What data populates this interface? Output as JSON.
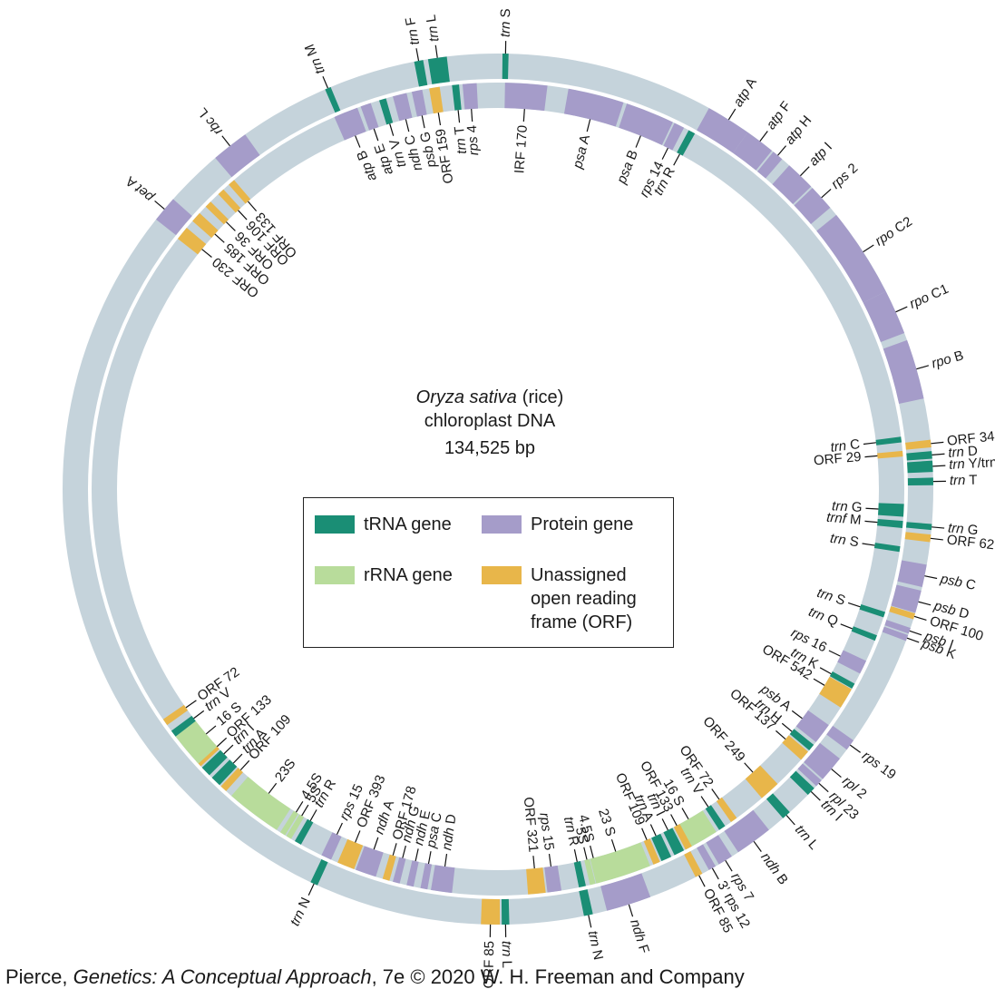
{
  "title": {
    "species": "Oryza sativa",
    "common": "(rice)",
    "line2": "chloroplast DNA",
    "line3": "134,525 bp"
  },
  "legend": {
    "trna": "tRNA gene",
    "protein": "Protein gene",
    "rrna": "rRNA gene",
    "orf_line1": "Unassigned",
    "orf_line2": "open reading",
    "orf_line3": "frame (ORF)"
  },
  "colors": {
    "trna": "#1a8e75",
    "protein": "#a59cc9",
    "rrna": "#b8dc9b",
    "orf": "#e8b64a",
    "ring": "#c5d3db",
    "leader": "#111111"
  },
  "credit": {
    "author": "Pierce, ",
    "book": "Genetics: A Conceptual Approach",
    "rest": ", 7e © 2020 W. H. Freeman and Company"
  },
  "genes": [
    {
      "label": "trn S",
      "t": "trna",
      "r": "o",
      "a": 1,
      "w": 0.8
    },
    {
      "label": "trn L",
      "t": "trna",
      "r": "o",
      "a": -8,
      "w": 2.5
    },
    {
      "label": "trn F",
      "t": "trna",
      "r": "o",
      "a": -10.5,
      "w": 1.2
    },
    {
      "label": "trn M",
      "t": "trna",
      "r": "o",
      "a": -23,
      "w": 0.8
    },
    {
      "label": "rbc L",
      "t": "protein",
      "r": "o",
      "a": -38,
      "w": 5
    },
    {
      "label": "ORF 133",
      "t": "orf",
      "r": "i",
      "a": -41,
      "w": 1
    },
    {
      "label": "ORF 106",
      "t": "orf",
      "r": "i",
      "a": -43,
      "w": 1
    },
    {
      "label": "ORF 36",
      "t": "orf",
      "r": "i",
      "a": -45.5,
      "w": 1
    },
    {
      "label": "ORF 185",
      "t": "orf",
      "r": "i",
      "a": -48,
      "w": 1.5
    },
    {
      "label": "pet A",
      "t": "protein",
      "r": "o",
      "a": -50,
      "w": 3.5
    },
    {
      "label": "ORF 230",
      "t": "orf",
      "r": "i",
      "a": -51,
      "w": 2
    },
    {
      "label": "atp B",
      "t": "protein",
      "r": "i",
      "a": -22,
      "w": 3.5
    },
    {
      "label": "atp E",
      "t": "protein",
      "r": "i",
      "a": -19,
      "w": 1.5
    },
    {
      "label": "trn V",
      "t": "trna",
      "r": "i",
      "a": -16.5,
      "w": 1
    },
    {
      "label": "ndh C",
      "t": "protein",
      "r": "i",
      "a": -14,
      "w": 2
    },
    {
      "label": "psb G",
      "t": "protein",
      "r": "i",
      "a": -11.5,
      "w": 1.5
    },
    {
      "label": "ORF 159",
      "t": "orf",
      "r": "i",
      "a": -9,
      "w": 1.5
    },
    {
      "label": "rps 4",
      "t": "protein",
      "r": "i",
      "a": -4,
      "w": 2
    },
    {
      "label": "trn T",
      "t": "trna",
      "r": "i",
      "a": -6,
      "w": 1
    },
    {
      "label": "IRF 170",
      "t": "protein",
      "r": "i",
      "a": 4,
      "w": 6
    },
    {
      "label": "psa A",
      "t": "protein",
      "r": "i",
      "a": 14,
      "w": 8
    },
    {
      "label": "psa B",
      "t": "protein",
      "r": "i",
      "a": 22,
      "w": 7
    },
    {
      "label": "rps 14",
      "t": "protein",
      "r": "i",
      "a": 26.5,
      "w": 1.5
    },
    {
      "label": "trn R",
      "t": "trna",
      "r": "i",
      "a": 28.5,
      "w": 1
    },
    {
      "label": "atp A",
      "t": "protein",
      "r": "o",
      "a": 32,
      "w": 6
    },
    {
      "label": "atp F",
      "t": "protein",
      "r": "o",
      "a": 37,
      "w": 4
    },
    {
      "label": "atp H",
      "t": "protein",
      "r": "o",
      "a": 40,
      "w": 1.5
    },
    {
      "label": "atp I",
      "t": "protein",
      "r": "o",
      "a": 44,
      "w": 4
    },
    {
      "label": "rps 2",
      "t": "protein",
      "r": "o",
      "a": 48,
      "w": 3.5
    },
    {
      "label": "rpo C2",
      "t": "protein",
      "r": "o",
      "a": 57,
      "w": 12
    },
    {
      "label": "rpo C1",
      "t": "protein",
      "r": "o",
      "a": 66,
      "w": 6
    },
    {
      "label": "rpo B",
      "t": "protein",
      "r": "o",
      "a": 74,
      "w": 8
    },
    {
      "label": "ORF 34",
      "t": "orf",
      "r": "o",
      "a": 84,
      "w": 1
    },
    {
      "label": "trn D",
      "t": "trna",
      "r": "o",
      "a": 85.5,
      "w": 1
    },
    {
      "label": "trn Y/trn E",
      "t": "trna",
      "r": "o",
      "a": 87,
      "w": 1.5
    },
    {
      "label": "trn T",
      "t": "trna",
      "r": "o",
      "a": 89,
      "w": 1
    },
    {
      "label": "trn C",
      "t": "trna",
      "r": "i",
      "a": 83,
      "w": 0.8
    },
    {
      "label": "ORF 29",
      "t": "orf",
      "r": "i",
      "a": 85,
      "w": 0.8
    },
    {
      "label": "trn G",
      "t": "trna",
      "r": "i",
      "a": 93,
      "w": 1.8
    },
    {
      "label": "trnf M",
      "t": "trna",
      "r": "i",
      "a": 95,
      "w": 1
    },
    {
      "label": "trn G",
      "t": "trna",
      "r": "o",
      "a": 95,
      "w": 0.8
    },
    {
      "label": "ORF 62",
      "t": "orf",
      "r": "o",
      "a": 96.5,
      "w": 1
    },
    {
      "label": "trn S",
      "t": "trna",
      "r": "i",
      "a": 98.5,
      "w": 0.8
    },
    {
      "label": "psb C",
      "t": "protein",
      "r": "o",
      "a": 101.5,
      "w": 3
    },
    {
      "label": "psb D",
      "t": "protein",
      "r": "o",
      "a": 105,
      "w": 3
    },
    {
      "label": "ORF 100",
      "t": "orf",
      "r": "o",
      "a": 107,
      "w": 0.8
    },
    {
      "label": "trn S",
      "t": "trna",
      "r": "i",
      "a": 108,
      "w": 0.8
    },
    {
      "label": "psb I",
      "t": "protein",
      "r": "o",
      "a": 109,
      "w": 0.8
    },
    {
      "label": "psb K",
      "t": "protein",
      "r": "o",
      "a": 110,
      "w": 0.8
    },
    {
      "label": "trn Q",
      "t": "trna",
      "r": "i",
      "a": 111.5,
      "w": 0.8
    },
    {
      "label": "rps 16",
      "t": "protein",
      "r": "i",
      "a": 116,
      "w": 2
    },
    {
      "label": "trn K",
      "t": "trna",
      "r": "i",
      "a": 119,
      "w": 0.8
    },
    {
      "label": "ORF 542",
      "t": "orf",
      "r": "i",
      "a": 121,
      "w": 3
    },
    {
      "label": "psb A",
      "t": "protein",
      "r": "i",
      "a": 127,
      "w": 3
    },
    {
      "label": "trn H",
      "t": "trna",
      "r": "i",
      "a": 129.5,
      "w": 1
    },
    {
      "label": "ORF 137",
      "t": "orf",
      "r": "i",
      "a": 131,
      "w": 1.5
    },
    {
      "label": "ORF 249",
      "t": "orf",
      "r": "i",
      "a": 138,
      "w": 3
    },
    {
      "label": "rps 19",
      "t": "protein",
      "r": "o",
      "a": 126,
      "w": 1.5
    },
    {
      "label": "rpl 2",
      "t": "protein",
      "r": "o",
      "a": 130,
      "w": 3.5
    },
    {
      "label": "rpl 23",
      "t": "protein",
      "r": "o",
      "a": 132.5,
      "w": 1
    },
    {
      "label": "trn I",
      "t": "trna",
      "r": "o",
      "a": 134,
      "w": 1.2
    },
    {
      "label": "trn L",
      "t": "trna",
      "r": "o",
      "a": 138.5,
      "w": 1.2
    },
    {
      "label": "ndh B",
      "t": "protein",
      "r": "o",
      "a": 144,
      "w": 5
    },
    {
      "label": "rps 7",
      "t": "protein",
      "r": "o",
      "a": 148.5,
      "w": 2
    },
    {
      "label": "3’ rps 12",
      "t": "protein",
      "r": "o",
      "a": 150.5,
      "w": 1
    },
    {
      "label": "ORF 85",
      "t": "orf",
      "r": "o",
      "a": 152.5,
      "w": 1
    },
    {
      "label": "ORF 72",
      "t": "orf",
      "r": "i",
      "a": 144.5,
      "w": 1
    },
    {
      "label": "trn V",
      "t": "trna",
      "r": "i",
      "a": 146.5,
      "w": 1
    },
    {
      "label": "16 S",
      "t": "rrna",
      "r": "i",
      "a": 150,
      "w": 5
    },
    {
      "label": "ORF 133",
      "t": "orf",
      "r": "i",
      "a": 152,
      "w": 1
    },
    {
      "label": "trn I",
      "t": "trna",
      "r": "i",
      "a": 153.5,
      "w": 1.5
    },
    {
      "label": "trn A",
      "t": "trna",
      "r": "i",
      "a": 155.5,
      "w": 1.5
    },
    {
      "label": "ORF 109",
      "t": "orf",
      "r": "i",
      "a": 157,
      "w": 1
    },
    {
      "label": "23 S",
      "t": "rrna",
      "r": "i",
      "a": 162,
      "w": 8
    },
    {
      "label": "4.5S",
      "t": "rrna",
      "r": "i",
      "a": 165.5,
      "w": 0.8
    },
    {
      "label": "5S",
      "t": "rrna",
      "r": "i",
      "a": 166.5,
      "w": 0.8
    },
    {
      "label": "trn R",
      "t": "trna",
      "r": "i",
      "a": 168,
      "w": 1
    },
    {
      "label": "rps 15",
      "t": "protein",
      "r": "i",
      "a": 172,
      "w": 2
    },
    {
      "label": "ORF 321",
      "t": "orf",
      "r": "i",
      "a": 174.5,
      "w": 2.5
    },
    {
      "label": "ndh D",
      "t": "protein",
      "r": "i",
      "a": 188,
      "w": 3
    },
    {
      "label": "psa C",
      "t": "protein",
      "r": "i",
      "a": 190.5,
      "w": 1
    },
    {
      "label": "ndh E",
      "t": "protein",
      "r": "i",
      "a": 192.5,
      "w": 1
    },
    {
      "label": "ndh G",
      "t": "protein",
      "r": "i",
      "a": 194.5,
      "w": 1
    },
    {
      "label": "ORF 178",
      "t": "orf",
      "r": "i",
      "a": 196,
      "w": 1
    },
    {
      "label": "ORF 393",
      "t": "orf",
      "r": "i",
      "a": 202,
      "w": 2.5
    },
    {
      "label": "ndh A",
      "t": "protein",
      "r": "i",
      "a": 199,
      "w": 3
    },
    {
      "label": "rps 15",
      "t": "protein",
      "r": "i",
      "a": 205,
      "w": 1.5
    },
    {
      "label": "trn R",
      "t": "trna",
      "r": "i",
      "a": 209.5,
      "w": 1
    },
    {
      "label": "5S",
      "t": "rrna",
      "r": "i",
      "a": 211,
      "w": 0.8
    },
    {
      "label": "4.5S",
      "t": "rrna",
      "r": "i",
      "a": 212,
      "w": 0.8
    },
    {
      "label": "23S",
      "t": "rrna",
      "r": "i",
      "a": 217,
      "w": 8
    },
    {
      "label": "ORF 109",
      "t": "orf",
      "r": "i",
      "a": 222.5,
      "w": 1
    },
    {
      "label": "trn A",
      "t": "trna",
      "r": "i",
      "a": 224,
      "w": 1.5
    },
    {
      "label": "trn I",
      "t": "trna",
      "r": "i",
      "a": 226,
      "w": 1.5
    },
    {
      "label": "ORF 133",
      "t": "orf",
      "r": "i",
      "a": 227.5,
      "w": 1
    },
    {
      "label": "16 S",
      "t": "rrna",
      "r": "i",
      "a": 230,
      "w": 5
    },
    {
      "label": "trn V",
      "t": "trna",
      "r": "i",
      "a": 233,
      "w": 1
    },
    {
      "label": "ORF 72",
      "t": "orf",
      "r": "i",
      "a": 235,
      "w": 1
    },
    {
      "label": "ndh F",
      "t": "protein",
      "r": "o",
      "a": 162.5,
      "w": 6
    },
    {
      "label": "trn N",
      "t": "trna",
      "r": "o",
      "a": 168,
      "w": 1.2
    },
    {
      "label": "trn L",
      "t": "trna",
      "r": "o",
      "a": 179,
      "w": 1
    },
    {
      "label": "ORF 85",
      "t": "orf",
      "r": "o",
      "a": 181,
      "w": 2.5
    },
    {
      "label": "trn N",
      "t": "trna",
      "r": "o",
      "a": 205,
      "w": 1
    }
  ]
}
